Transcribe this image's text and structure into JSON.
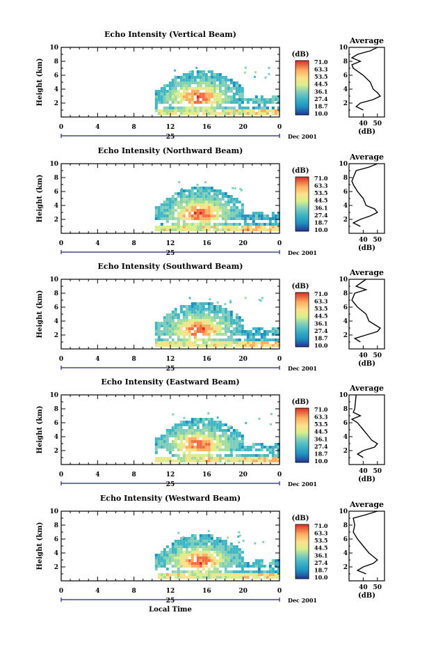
{
  "panels": [
    {
      "title": "Echo Intensity (Vertical Beam)",
      "avg_title": "Average",
      "avg_profile": [
        [
          1.0,
          40
        ],
        [
          1.5,
          35
        ],
        [
          2.0,
          38
        ],
        [
          2.5,
          47
        ],
        [
          3.0,
          52
        ],
        [
          3.5,
          50
        ],
        [
          4.0,
          47
        ],
        [
          5.0,
          45
        ],
        [
          6.0,
          40
        ],
        [
          7.0,
          33
        ],
        [
          7.5,
          32
        ],
        [
          8.0,
          38
        ],
        [
          8.5,
          32
        ],
        [
          9.0,
          36
        ],
        [
          9.5,
          45
        ],
        [
          10.0,
          50
        ]
      ]
    },
    {
      "title": "Echo Intensity (Northward Beam)",
      "avg_title": "Average",
      "avg_profile": [
        [
          1.0,
          38
        ],
        [
          1.5,
          33
        ],
        [
          2.0,
          38
        ],
        [
          2.5,
          45
        ],
        [
          3.0,
          50
        ],
        [
          3.5,
          48
        ],
        [
          4.0,
          42
        ],
        [
          5.0,
          40
        ],
        [
          6.0,
          36
        ],
        [
          7.0,
          33
        ],
        [
          7.5,
          32
        ],
        [
          9.0,
          35
        ],
        [
          9.5,
          44
        ],
        [
          10.0,
          50
        ]
      ]
    },
    {
      "title": "Echo Intensity (Southward Beam)",
      "avg_title": "Average",
      "avg_profile": [
        [
          1.0,
          38
        ],
        [
          1.5,
          34
        ],
        [
          2.0,
          42
        ],
        [
          2.5,
          50
        ],
        [
          3.0,
          52
        ],
        [
          3.5,
          48
        ],
        [
          4.0,
          44
        ],
        [
          5.0,
          42
        ],
        [
          6.0,
          36
        ],
        [
          7.0,
          32
        ],
        [
          8.0,
          34
        ],
        [
          8.5,
          42
        ],
        [
          9.0,
          35
        ],
        [
          10.0,
          42
        ]
      ]
    },
    {
      "title": "Echo Intensity (Eastward Beam)",
      "avg_title": "Average",
      "avg_profile": [
        [
          1.0,
          40
        ],
        [
          1.5,
          36
        ],
        [
          2.0,
          40
        ],
        [
          2.5,
          48
        ],
        [
          3.0,
          50
        ],
        [
          3.5,
          46
        ],
        [
          4.0,
          44
        ],
        [
          5.0,
          40
        ],
        [
          6.0,
          36
        ],
        [
          6.5,
          32
        ],
        [
          7.0,
          38
        ],
        [
          7.5,
          33
        ],
        [
          8.0,
          34
        ],
        [
          10.0,
          35
        ]
      ]
    },
    {
      "title": "Echo Intensity (Westward Beam)",
      "avg_title": "Average",
      "avg_profile": [
        [
          1.0,
          42
        ],
        [
          1.5,
          36
        ],
        [
          2.0,
          40
        ],
        [
          2.5,
          47
        ],
        [
          3.0,
          50
        ],
        [
          3.5,
          47
        ],
        [
          4.0,
          44
        ],
        [
          5.0,
          40
        ],
        [
          6.0,
          36
        ],
        [
          7.0,
          33
        ],
        [
          8.0,
          34
        ],
        [
          9.0,
          33
        ],
        [
          9.5,
          42
        ],
        [
          10.0,
          50
        ]
      ]
    }
  ],
  "ylabel": "Height (km)",
  "yticks": [
    "2",
    "4",
    "6",
    "8",
    "10"
  ],
  "xticks": [
    "0",
    "4",
    "8",
    "12",
    "16",
    "20",
    "0"
  ],
  "day_label": "25",
  "month_year": "Dec 2001",
  "xlabel": "Local Time",
  "colorbar": {
    "unit": "(dB)",
    "tick_labels": [
      "71.0",
      "63.3",
      "53.5",
      "44.5",
      "36.1",
      "27.4",
      "18.7",
      "10.0"
    ],
    "colors": [
      "#253494",
      "#2c5fbe",
      "#1d91c0",
      "#41b6c4",
      "#7fcdbb",
      "#a5dd9b",
      "#d9ef8b",
      "#fee08b",
      "#fdae61",
      "#f46d43",
      "#d73027"
    ]
  },
  "avg_xticks": [
    "40",
    "50"
  ],
  "avg_xlabel": "(dB)",
  "chart_data": [
    {
      "type": "heatmap",
      "title": "Echo Intensity (Vertical Beam)",
      "xlabel": "",
      "ylabel": "Height (km)",
      "x_range_local_time_hours": [
        0,
        24
      ],
      "y_range_km": [
        0,
        10
      ],
      "color_range_db": [
        10.0,
        71.0
      ],
      "echo_region": {
        "start_hour": 10.3,
        "end_hour": 24,
        "cloud_top_km": 6.5,
        "max_intensity_hour": 14.5,
        "max_intensity_km": 2.5
      }
    },
    {
      "type": "line",
      "title": "Average",
      "xlabel": "(dB)",
      "ylabel": "Height (km)",
      "xlim": [
        30,
        55
      ],
      "ylim": [
        0,
        10
      ]
    }
  ]
}
